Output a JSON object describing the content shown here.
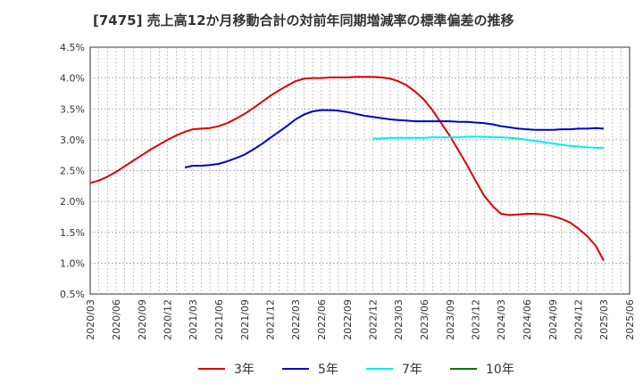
{
  "chart_data": {
    "type": "line",
    "title": "[7475]  売上高12か月移動合計の対前年同期増減率の標準偏差の推移",
    "xlabel": "",
    "ylabel": "",
    "x_ticks": [
      "2020/03",
      "2020/06",
      "2020/09",
      "2020/12",
      "2021/03",
      "2021/06",
      "2021/09",
      "2021/12",
      "2022/03",
      "2022/06",
      "2022/09",
      "2022/12",
      "2023/03",
      "2023/06",
      "2023/09",
      "2023/12",
      "2024/03",
      "2024/06",
      "2024/09",
      "2024/12",
      "2025/03",
      "2025/06"
    ],
    "y_ticks": [
      "0.5%",
      "1.0%",
      "1.5%",
      "2.0%",
      "2.5%",
      "3.0%",
      "3.5%",
      "4.0%",
      "4.5%"
    ],
    "ylim": [
      0.5,
      4.5
    ],
    "grid": true,
    "legend_position": "bottom",
    "series": [
      {
        "name": "3年",
        "color": "#dd0000",
        "x": [
          "2020/03",
          "2020/04",
          "2020/05",
          "2020/06",
          "2020/07",
          "2020/08",
          "2020/09",
          "2020/10",
          "2020/11",
          "2020/12",
          "2021/01",
          "2021/02",
          "2021/03",
          "2021/04",
          "2021/05",
          "2021/06",
          "2021/07",
          "2021/08",
          "2021/09",
          "2021/10",
          "2021/11",
          "2021/12",
          "2022/01",
          "2022/02",
          "2022/03",
          "2022/04",
          "2022/05",
          "2022/06",
          "2022/07",
          "2022/08",
          "2022/09",
          "2022/10",
          "2022/11",
          "2022/12",
          "2023/01",
          "2023/02",
          "2023/03",
          "2023/04",
          "2023/05",
          "2023/06",
          "2023/07",
          "2023/08",
          "2023/09",
          "2023/10",
          "2023/11",
          "2023/12",
          "2024/01",
          "2024/02",
          "2024/03",
          "2024/04",
          "2024/05",
          "2024/06",
          "2024/07",
          "2024/08",
          "2024/09",
          "2024/10",
          "2024/11",
          "2024/12",
          "2025/01",
          "2025/02",
          "2025/03"
        ],
        "values": [
          2.3,
          2.34,
          2.4,
          2.48,
          2.57,
          2.66,
          2.75,
          2.84,
          2.92,
          3.0,
          3.07,
          3.13,
          3.17,
          3.18,
          3.19,
          3.22,
          3.27,
          3.34,
          3.42,
          3.51,
          3.61,
          3.71,
          3.8,
          3.88,
          3.95,
          3.99,
          4.0,
          4.0,
          4.01,
          4.01,
          4.01,
          4.02,
          4.02,
          4.02,
          4.01,
          3.99,
          3.95,
          3.88,
          3.78,
          3.65,
          3.48,
          3.27,
          3.06,
          2.83,
          2.59,
          2.34,
          2.09,
          1.92,
          1.8,
          1.78,
          1.79,
          1.8,
          1.8,
          1.79,
          1.76,
          1.72,
          1.66,
          1.56,
          1.44,
          1.28,
          1.04
        ]
      },
      {
        "name": "5年",
        "color": "#0000cc",
        "x": [
          "2021/02",
          "2021/03",
          "2021/04",
          "2021/05",
          "2021/06",
          "2021/07",
          "2021/08",
          "2021/09",
          "2021/10",
          "2021/11",
          "2021/12",
          "2022/01",
          "2022/02",
          "2022/03",
          "2022/04",
          "2022/05",
          "2022/06",
          "2022/07",
          "2022/08",
          "2022/09",
          "2022/10",
          "2022/11",
          "2022/12",
          "2023/01",
          "2023/02",
          "2023/03",
          "2023/04",
          "2023/05",
          "2023/06",
          "2023/07",
          "2023/08",
          "2023/09",
          "2023/10",
          "2023/11",
          "2023/12",
          "2024/01",
          "2024/02",
          "2024/03",
          "2024/04",
          "2024/05",
          "2024/06",
          "2024/07",
          "2024/08",
          "2024/09",
          "2024/10",
          "2024/11",
          "2024/12",
          "2025/01",
          "2025/02",
          "2025/03"
        ],
        "values": [
          2.55,
          2.58,
          2.58,
          2.59,
          2.61,
          2.65,
          2.7,
          2.76,
          2.84,
          2.93,
          3.03,
          3.13,
          3.23,
          3.33,
          3.41,
          3.46,
          3.48,
          3.48,
          3.47,
          3.45,
          3.42,
          3.39,
          3.37,
          3.35,
          3.33,
          3.32,
          3.31,
          3.3,
          3.3,
          3.3,
          3.3,
          3.3,
          3.29,
          3.29,
          3.28,
          3.27,
          3.25,
          3.22,
          3.2,
          3.18,
          3.17,
          3.16,
          3.16,
          3.16,
          3.17,
          3.17,
          3.18,
          3.18,
          3.19,
          3.18
        ]
      },
      {
        "name": "7年",
        "color": "#00eeee",
        "x": [
          "2022/12",
          "2023/01",
          "2023/02",
          "2023/03",
          "2023/04",
          "2023/05",
          "2023/06",
          "2023/07",
          "2023/08",
          "2023/09",
          "2023/10",
          "2023/11",
          "2023/12",
          "2024/01",
          "2024/02",
          "2024/03",
          "2024/04",
          "2024/05",
          "2024/06",
          "2024/07",
          "2024/08",
          "2024/09",
          "2024/10",
          "2024/11",
          "2024/12",
          "2025/01",
          "2025/02",
          "2025/03"
        ],
        "values": [
          3.02,
          3.02,
          3.03,
          3.03,
          3.03,
          3.03,
          3.03,
          3.04,
          3.04,
          3.04,
          3.04,
          3.05,
          3.05,
          3.05,
          3.04,
          3.04,
          3.03,
          3.02,
          3.0,
          2.98,
          2.96,
          2.94,
          2.92,
          2.9,
          2.89,
          2.88,
          2.87,
          2.87
        ]
      },
      {
        "name": "10年",
        "color": "#007700",
        "x": [],
        "values": []
      }
    ]
  }
}
